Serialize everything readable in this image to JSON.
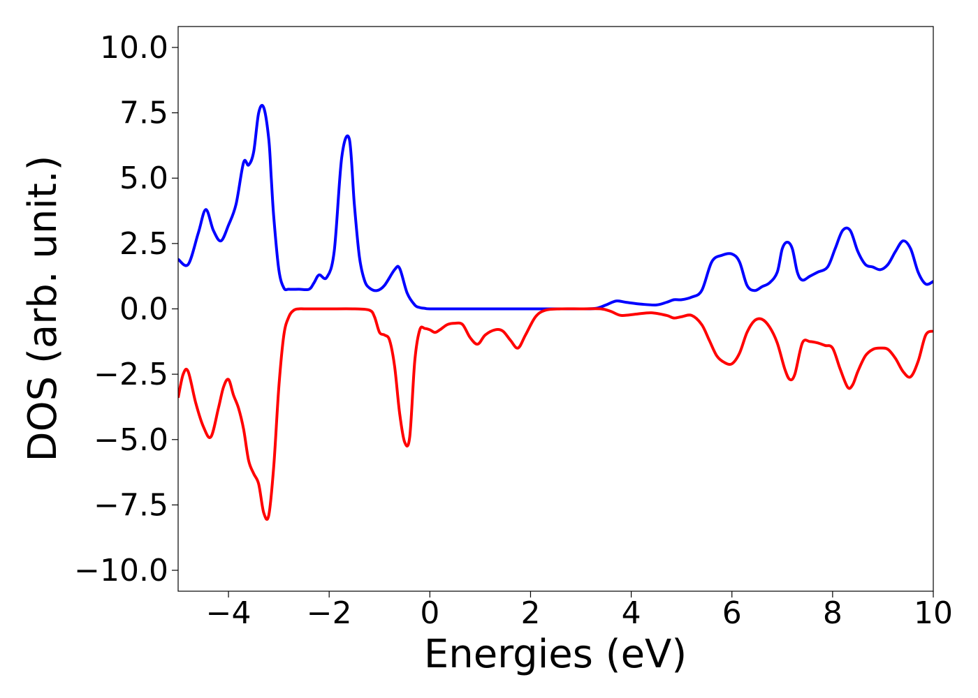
{
  "chart_data": {
    "type": "line",
    "title": "",
    "xlabel": "Energies (eV)",
    "ylabel": "DOS (arb. unit.)",
    "xlim": [
      -5,
      10
    ],
    "ylim": [
      -10.8,
      10.8
    ],
    "xticks": [
      -4,
      -2,
      0,
      2,
      4,
      6,
      8,
      10
    ],
    "yticks": [
      10.0,
      7.5,
      5.0,
      2.5,
      0.0,
      -2.5,
      -5.0,
      -7.5,
      -10.0
    ],
    "xtick_labels": [
      "−4",
      "−2",
      "0",
      "2",
      "4",
      "6",
      "8",
      "10"
    ],
    "ytick_labels": [
      "10.0",
      "7.5",
      "5.0",
      "2.5",
      "0.0",
      "−2.5",
      "−5.0",
      "−7.5",
      "−10.0"
    ],
    "grid": false,
    "series": [
      {
        "color": "#0000ff",
        "x": [
          -5.0,
          -4.8,
          -4.6,
          -4.45,
          -4.3,
          -4.15,
          -4.0,
          -3.85,
          -3.7,
          -3.6,
          -3.5,
          -3.4,
          -3.3,
          -3.2,
          -3.15,
          -3.1,
          -3.0,
          -2.9,
          -2.8,
          -2.6,
          -2.4,
          -2.3,
          -2.2,
          -2.05,
          -1.9,
          -1.75,
          -1.6,
          -1.5,
          -1.4,
          -1.3,
          -1.2,
          -1.05,
          -0.9,
          -0.7,
          -0.6,
          -0.45,
          -0.3,
          -0.2,
          -0.1,
          0.0,
          0.5,
          1.0,
          2.0,
          3.0,
          3.3,
          3.5,
          3.7,
          3.9,
          4.2,
          4.5,
          4.7,
          4.85,
          5.0,
          5.2,
          5.4,
          5.6,
          5.8,
          6.0,
          6.15,
          6.3,
          6.45,
          6.6,
          6.75,
          6.9,
          7.0,
          7.1,
          7.2,
          7.3,
          7.4,
          7.55,
          7.7,
          7.9,
          8.05,
          8.2,
          8.35,
          8.5,
          8.65,
          8.8,
          8.95,
          9.1,
          9.25,
          9.4,
          9.55,
          9.7,
          9.85,
          10.0
        ],
        "y": [
          1.9,
          1.7,
          2.9,
          3.8,
          3.0,
          2.6,
          3.2,
          4.0,
          5.6,
          5.5,
          6.0,
          7.5,
          7.7,
          6.5,
          5.0,
          3.5,
          1.5,
          0.8,
          0.75,
          0.75,
          0.75,
          1.0,
          1.3,
          1.2,
          2.2,
          5.8,
          6.5,
          4.0,
          2.0,
          1.1,
          0.8,
          0.7,
          0.9,
          1.5,
          1.55,
          0.6,
          0.15,
          0.05,
          0.02,
          0.0,
          0.0,
          0.0,
          0.0,
          0.0,
          0.02,
          0.15,
          0.3,
          0.25,
          0.18,
          0.15,
          0.25,
          0.35,
          0.35,
          0.45,
          0.7,
          1.8,
          2.05,
          2.1,
          1.8,
          0.9,
          0.7,
          0.85,
          1.0,
          1.4,
          2.3,
          2.55,
          2.3,
          1.4,
          1.1,
          1.25,
          1.4,
          1.6,
          2.3,
          3.0,
          3.0,
          2.2,
          1.7,
          1.6,
          1.5,
          1.7,
          2.2,
          2.6,
          2.3,
          1.4,
          0.95,
          1.05
        ]
      },
      {
        "color": "#ff0000",
        "x": [
          -5.0,
          -4.9,
          -4.8,
          -4.65,
          -4.5,
          -4.35,
          -4.2,
          -4.1,
          -4.0,
          -3.9,
          -3.8,
          -3.7,
          -3.6,
          -3.5,
          -3.4,
          -3.3,
          -3.2,
          -3.1,
          -3.0,
          -2.9,
          -2.8,
          -2.7,
          -2.6,
          -2.5,
          -2.3,
          -2.0,
          -1.5,
          -1.2,
          -1.1,
          -1.0,
          -0.9,
          -0.8,
          -0.7,
          -0.6,
          -0.5,
          -0.4,
          -0.3,
          -0.2,
          -0.1,
          0.0,
          0.1,
          0.2,
          0.35,
          0.5,
          0.65,
          0.8,
          0.95,
          1.1,
          1.3,
          1.45,
          1.6,
          1.75,
          1.9,
          2.1,
          2.3,
          2.6,
          3.0,
          3.4,
          3.6,
          3.8,
          4.1,
          4.4,
          4.7,
          4.85,
          5.0,
          5.2,
          5.4,
          5.55,
          5.7,
          5.85,
          6.0,
          6.15,
          6.3,
          6.45,
          6.6,
          6.75,
          6.9,
          7.05,
          7.15,
          7.25,
          7.4,
          7.55,
          7.7,
          7.85,
          8.0,
          8.15,
          8.3,
          8.4,
          8.5,
          8.65,
          8.8,
          8.95,
          9.1,
          9.25,
          9.4,
          9.55,
          9.7,
          9.85,
          10.0
        ],
        "y": [
          -3.4,
          -2.5,
          -2.4,
          -3.6,
          -4.5,
          -4.9,
          -3.8,
          -3.0,
          -2.7,
          -3.3,
          -3.8,
          -4.6,
          -5.8,
          -6.3,
          -6.7,
          -7.8,
          -7.9,
          -6.0,
          -3.0,
          -1.0,
          -0.3,
          -0.05,
          0.0,
          0.0,
          0.0,
          0.0,
          0.0,
          -0.05,
          -0.3,
          -0.9,
          -1.0,
          -1.2,
          -2.2,
          -4.0,
          -5.1,
          -4.9,
          -2.0,
          -0.8,
          -0.75,
          -0.8,
          -0.9,
          -0.8,
          -0.6,
          -0.55,
          -0.6,
          -1.1,
          -1.35,
          -1.0,
          -0.8,
          -0.85,
          -1.2,
          -1.5,
          -1.0,
          -0.3,
          -0.05,
          0.0,
          0.0,
          0.0,
          -0.1,
          -0.25,
          -0.2,
          -0.15,
          -0.25,
          -0.35,
          -0.3,
          -0.25,
          -0.6,
          -1.2,
          -1.8,
          -2.05,
          -2.1,
          -1.7,
          -0.9,
          -0.45,
          -0.4,
          -0.7,
          -1.3,
          -2.3,
          -2.7,
          -2.5,
          -1.3,
          -1.25,
          -1.3,
          -1.4,
          -1.5,
          -2.3,
          -3.0,
          -2.9,
          -2.4,
          -1.8,
          -1.55,
          -1.5,
          -1.55,
          -1.9,
          -2.4,
          -2.6,
          -2.0,
          -1.0,
          -0.85
        ]
      }
    ]
  }
}
